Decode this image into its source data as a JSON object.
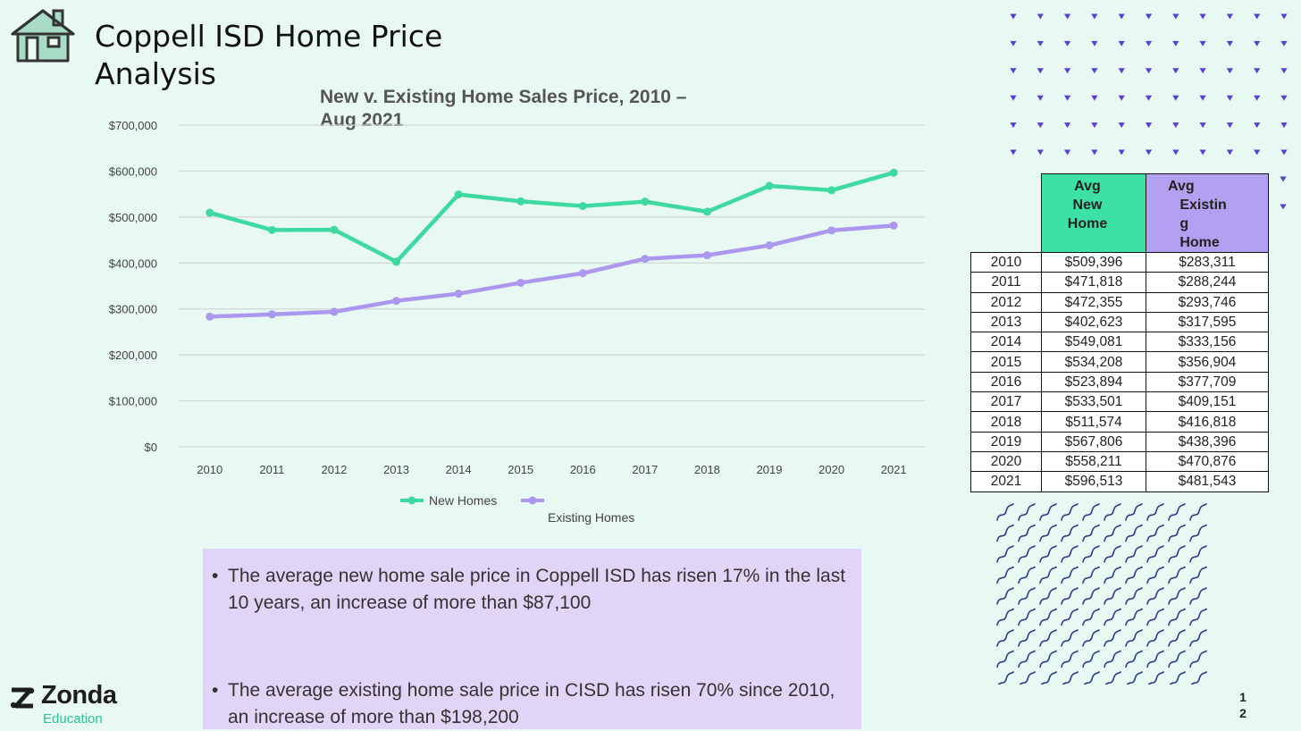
{
  "slide": {
    "title": "Coppell ISD Home Price Analysis",
    "page_number": "12"
  },
  "chart_data": {
    "type": "line",
    "title": "New v. Existing Home Sales Price, 2010 – Aug 2021",
    "categories": [
      "2010",
      "2011",
      "2012",
      "2013",
      "2014",
      "2015",
      "2016",
      "2017",
      "2018",
      "2019",
      "2020",
      "2021"
    ],
    "series": [
      {
        "name": "New Homes",
        "color": "#3dd9a0",
        "values": [
          509396,
          471818,
          472355,
          402623,
          549081,
          534208,
          523894,
          533501,
          511574,
          567806,
          558211,
          596513
        ]
      },
      {
        "name": "Existing Homes",
        "color": "#ab98ee",
        "values": [
          283311,
          288244,
          293746,
          317595,
          333156,
          356904,
          377709,
          409151,
          416818,
          438396,
          470876,
          481543
        ]
      }
    ],
    "ylim": [
      0,
      700000
    ],
    "y_ticks": [
      "$0",
      "$100,000",
      "$200,000",
      "$300,000",
      "$400,000",
      "$500,000",
      "$600,000",
      "$700,000"
    ],
    "grid": true,
    "legend_position": "bottom"
  },
  "table": {
    "headers": [
      "Avg New Home",
      "Avg Existing Home"
    ],
    "rows": [
      {
        "year": "2010",
        "new": "$509,396",
        "existing": "$283,311"
      },
      {
        "year": "2011",
        "new": "$471,818",
        "existing": "$288,244"
      },
      {
        "year": "2012",
        "new": "$472,355",
        "existing": "$293,746"
      },
      {
        "year": "2013",
        "new": "$402,623",
        "existing": "$317,595"
      },
      {
        "year": "2014",
        "new": "$549,081",
        "existing": "$333,156"
      },
      {
        "year": "2015",
        "new": "$534,208",
        "existing": "$356,904"
      },
      {
        "year": "2016",
        "new": "$523,894",
        "existing": "$377,709"
      },
      {
        "year": "2017",
        "new": "$533,501",
        "existing": "$409,151"
      },
      {
        "year": "2018",
        "new": "$511,574",
        "existing": "$416,818"
      },
      {
        "year": "2019",
        "new": "$567,806",
        "existing": "$438,396"
      },
      {
        "year": "2020",
        "new": "$558,211",
        "existing": "$470,876"
      },
      {
        "year": "2021",
        "new": "$596,513",
        "existing": "$481,543"
      }
    ]
  },
  "notes": [
    "The average new home sale price in Coppell ISD has risen 17% in the last 10 years, an increase of more than $87,100",
    "The average existing home sale price in CISD has risen 70% since 2010,  an increase of more than $198,200"
  ],
  "logo": {
    "name": "Zonda",
    "sub": "Education"
  },
  "colors": {
    "new": "#3dd9a0",
    "existing": "#ab98ee",
    "background": "#e8f8f2",
    "accent_dots": "#5a3fd6",
    "waves": "#2c3e8c"
  }
}
